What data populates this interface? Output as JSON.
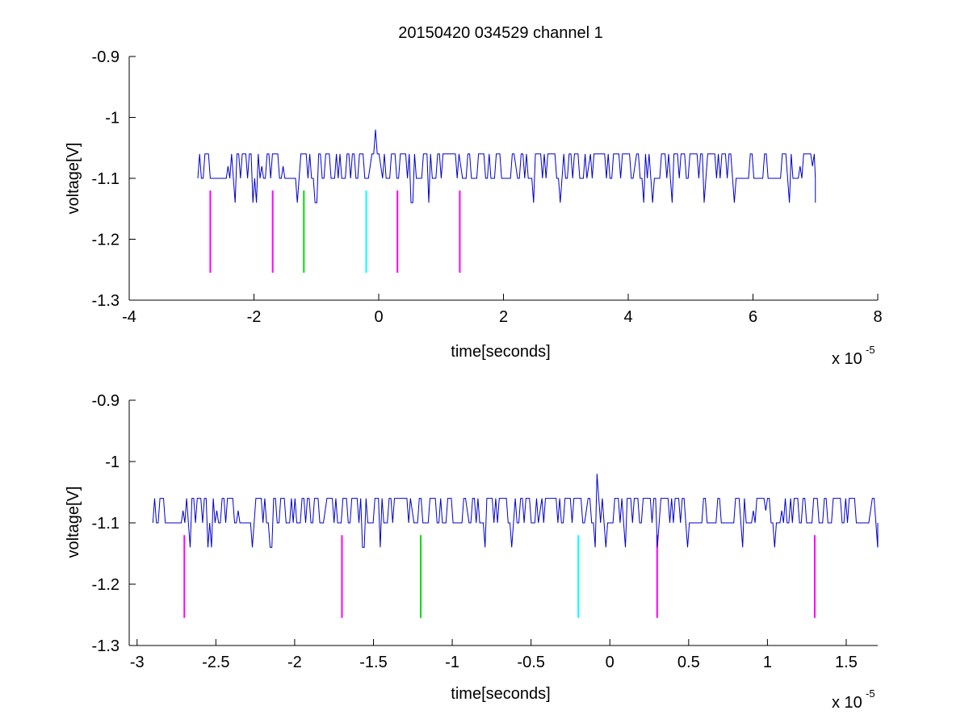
{
  "figure": {
    "title": "20150420 034529 channel 1"
  },
  "colors": {
    "signal": "#0000cc",
    "magenta": "#ff00ff",
    "green": "#00dd00",
    "cyan": "#00ffff",
    "axis": "#000000"
  },
  "chart_data": [
    {
      "type": "line",
      "title": "20150420 034529 channel 1",
      "xlabel": "time[seconds]",
      "ylabel": "voltage[V]",
      "x_multiplier_base": "x 10",
      "x_multiplier_exp": "-5",
      "xlim": [
        -4e-05,
        8e-05
      ],
      "ylim": [
        -1.3,
        -0.9
      ],
      "xticks": [
        -4e-05,
        -2e-05,
        0,
        2e-05,
        4e-05,
        6e-05,
        8e-05
      ],
      "xtick_labels": [
        "-4",
        "-2",
        "0",
        "2",
        "4",
        "6",
        "8"
      ],
      "yticks": [
        -0.9,
        -1.0,
        -1.1,
        -1.2,
        -1.3
      ],
      "ytick_labels": [
        "-0.9",
        "-1",
        "-1.1",
        "-1.2",
        "-1.3"
      ],
      "grid": false,
      "signal": {
        "x_start": -2.9e-05,
        "x_end": 7e-05,
        "baseline": -1.1,
        "high": -1.06,
        "low": -1.14,
        "peak_x": -6e-07,
        "peak_value": -1.02
      },
      "markers": [
        {
          "x": -2.7e-05,
          "color": "magenta",
          "y_top": -1.12,
          "y_bottom": -1.255
        },
        {
          "x": -1.7e-05,
          "color": "magenta",
          "y_top": -1.12,
          "y_bottom": -1.255
        },
        {
          "x": -1.2e-05,
          "color": "green",
          "y_top": -1.12,
          "y_bottom": -1.255
        },
        {
          "x": -2e-06,
          "color": "cyan",
          "y_top": -1.12,
          "y_bottom": -1.255
        },
        {
          "x": 3e-06,
          "color": "magenta",
          "y_top": -1.12,
          "y_bottom": -1.255
        },
        {
          "x": 1.3e-05,
          "color": "magenta",
          "y_top": -1.12,
          "y_bottom": -1.255
        }
      ]
    },
    {
      "type": "line",
      "title": "",
      "xlabel": "time[seconds]",
      "ylabel": "voltage[V]",
      "x_multiplier_base": "x 10",
      "x_multiplier_exp": "-5",
      "xlim": [
        -3.05e-05,
        1.7e-05
      ],
      "ylim": [
        -1.3,
        -0.9
      ],
      "xticks": [
        -3e-05,
        -2.5e-05,
        -2e-05,
        -1.5e-05,
        -1e-05,
        -5e-06,
        0,
        5e-06,
        1e-05,
        1.5e-05
      ],
      "xtick_labels": [
        "-3",
        "-2.5",
        "-2",
        "-1.5",
        "-1",
        "-0.5",
        "0",
        "0.5",
        "1",
        "1.5"
      ],
      "yticks": [
        -0.9,
        -1.0,
        -1.1,
        -1.2,
        -1.3
      ],
      "ytick_labels": [
        "-0.9",
        "-1",
        "-1.1",
        "-1.2",
        "-1.3"
      ],
      "grid": false,
      "signal": {
        "x_start": -2.9e-05,
        "x_end": 1.7e-05,
        "baseline": -1.1,
        "high": -1.06,
        "low": -1.14,
        "peak_x": -8e-07,
        "peak_value": -1.02
      },
      "markers": [
        {
          "x": -2.7e-05,
          "color": "magenta",
          "y_top": -1.12,
          "y_bottom": -1.255
        },
        {
          "x": -1.7e-05,
          "color": "magenta",
          "y_top": -1.12,
          "y_bottom": -1.255
        },
        {
          "x": -1.2e-05,
          "color": "green",
          "y_top": -1.12,
          "y_bottom": -1.255
        },
        {
          "x": -2e-06,
          "color": "cyan",
          "y_top": -1.12,
          "y_bottom": -1.255
        },
        {
          "x": 3e-06,
          "color": "magenta",
          "y_top": -1.12,
          "y_bottom": -1.255
        },
        {
          "x": 1.3e-05,
          "color": "magenta",
          "y_top": -1.12,
          "y_bottom": -1.255
        }
      ]
    }
  ]
}
